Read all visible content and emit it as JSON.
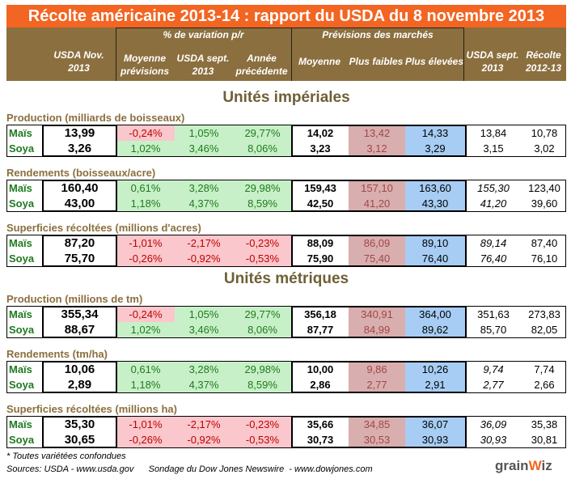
{
  "title": "Récolte américaine 2013-14 : rapport du USDA du 8 novembre 2013",
  "header": {
    "group_pct": "% de variation p/r",
    "group_market": "Prévisions des marchés",
    "columns": [
      "USDA Nov. 2013",
      "Moyenne prévisions",
      "USDA sept. 2013",
      "Année précédente",
      "Moyenne",
      "Plus faibles",
      "Plus élevées",
      "USDA sept. 2013",
      "Récolte 2012-13"
    ]
  },
  "colors": {
    "title_bg": "#f26522",
    "header_bg": "#8b6f3e",
    "positive": "#c8f0c8",
    "negative": "#f9c7cc",
    "low": "#d9aeae",
    "high": "#a7cdf4"
  },
  "sections": [
    {
      "title": "Unités impériales",
      "groups": [
        {
          "label": "Production (milliards de boisseaux)",
          "italic_sept": false,
          "rows": [
            {
              "name": "Maïs",
              "nov": "13,99",
              "pct": [
                "-0,24%",
                "1,05%",
                "29,77%"
              ],
              "moy": "14,02",
              "low": "13,42",
              "high": "14,33",
              "sept": "13,84",
              "prev": "10,78"
            },
            {
              "name": "Soya",
              "nov": "3,26",
              "pct": [
                "1,02%",
                "3,46%",
                "8,06%"
              ],
              "moy": "3,23",
              "low": "3,12",
              "high": "3,29",
              "sept": "3,15",
              "prev": "3,02"
            }
          ]
        },
        {
          "label": "Rendements (boisseaux/acre)",
          "italic_sept": true,
          "rows": [
            {
              "name": "Maïs",
              "nov": "160,40",
              "pct": [
                "0,61%",
                "3,28%",
                "29,98%"
              ],
              "moy": "159,43",
              "low": "157,10",
              "high": "163,60",
              "sept": "155,30",
              "prev": "123,40"
            },
            {
              "name": "Soya",
              "nov": "43,00",
              "pct": [
                "1,18%",
                "4,37%",
                "8,59%"
              ],
              "moy": "42,50",
              "low": "41,20",
              "high": "43,30",
              "sept": "41,20",
              "prev": "39,60"
            }
          ]
        },
        {
          "label": "Superficies récoltées (millions d'acres)",
          "italic_sept": true,
          "rows": [
            {
              "name": "Maïs",
              "nov": "87,20",
              "pct": [
                "-1,01%",
                "-2,17%",
                "-0,23%"
              ],
              "moy": "88,09",
              "low": "86,09",
              "high": "89,10",
              "sept": "89,14",
              "prev": "87,40"
            },
            {
              "name": "Soya",
              "nov": "75,70",
              "pct": [
                "-0,26%",
                "-0,92%",
                "-0,53%"
              ],
              "moy": "75,90",
              "low": "75,40",
              "high": "76,40",
              "sept": "76,40",
              "prev": "76,10"
            }
          ]
        }
      ]
    },
    {
      "title": "Unités métriques",
      "groups": [
        {
          "label": "Production (millions de tm)",
          "italic_sept": false,
          "rows": [
            {
              "name": "Maïs",
              "nov": "355,34",
              "pct": [
                "-0,24%",
                "1,05%",
                "29,77%"
              ],
              "moy": "356,18",
              "low": "340,91",
              "high": "364,00",
              "sept": "351,63",
              "prev": "273,83"
            },
            {
              "name": "Soya",
              "nov": "88,67",
              "pct": [
                "1,02%",
                "3,46%",
                "8,06%"
              ],
              "moy": "87,77",
              "low": "84,99",
              "high": "89,62",
              "sept": "85,70",
              "prev": "82,05"
            }
          ]
        },
        {
          "label": "Rendements (tm/ha)",
          "italic_sept": true,
          "rows": [
            {
              "name": "Maïs",
              "nov": "10,06",
              "pct": [
                "0,61%",
                "3,28%",
                "29,98%"
              ],
              "moy": "10,00",
              "low": "9,86",
              "high": "10,26",
              "sept": "9,74",
              "prev": "7,74"
            },
            {
              "name": "Soya",
              "nov": "2,89",
              "pct": [
                "1,18%",
                "4,37%",
                "8,59%"
              ],
              "moy": "2,86",
              "low": "2,77",
              "high": "2,91",
              "sept": "2,77",
              "prev": "2,66"
            }
          ]
        },
        {
          "label": "Superficies récoltées (millions ha)",
          "italic_sept": true,
          "rows": [
            {
              "name": "Maïs",
              "nov": "35,30",
              "pct": [
                "-1,01%",
                "-2,17%",
                "-0,23%"
              ],
              "moy": "35,66",
              "low": "34,85",
              "high": "36,07",
              "sept": "36,09",
              "prev": "35,38"
            },
            {
              "name": "Soya",
              "nov": "30,65",
              "pct": [
                "-0,26%",
                "-0,92%",
                "-0,53%"
              ],
              "moy": "30,73",
              "low": "30,53",
              "high": "30,93",
              "sept": "30,93",
              "prev": "30,81"
            }
          ]
        }
      ]
    }
  ],
  "footnote": "* Toutes variétées confondues",
  "sources": "Sources: USDA - www.usda.gov      Sondage du Dow Jones Newswire  - www.dowjones.com",
  "logo": "grainwiz"
}
